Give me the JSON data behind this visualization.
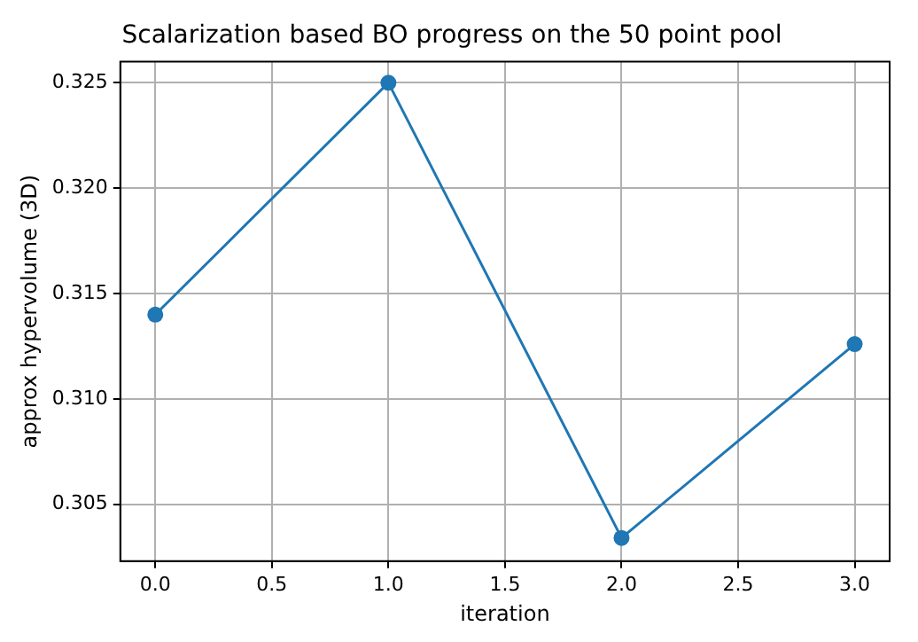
{
  "chart_data": {
    "type": "line",
    "title": "Scalarization based BO progress on the 50 point pool",
    "xlabel": "iteration",
    "ylabel": "approx hypervolume (3D)",
    "x": [
      0,
      1,
      2,
      3
    ],
    "series": [
      {
        "color": "#1f77b4",
        "values": [
          0.314,
          0.325,
          0.3034,
          0.3126
        ]
      }
    ],
    "xlim": [
      -0.15,
      3.15
    ],
    "xticks": [
      {
        "value": 0,
        "label": "0.0"
      },
      {
        "value": 0.5,
        "label": "0.5"
      },
      {
        "value": 1,
        "label": "1.0"
      },
      {
        "value": 1.5,
        "label": "1.5"
      },
      {
        "value": 2,
        "label": "2.0"
      },
      {
        "value": 2.5,
        "label": "2.5"
      },
      {
        "value": 3,
        "label": "3.0"
      }
    ],
    "ylim": [
      0.3023,
      0.326
    ],
    "yticks": [
      0.305,
      {
        "value": 0.31,
        "label": "0.310"
      },
      0.315,
      {
        "value": 0.32,
        "label": "0.320"
      },
      0.325
    ],
    "grid": true,
    "marker": "circle",
    "line_style": "solid",
    "legend": false
  }
}
